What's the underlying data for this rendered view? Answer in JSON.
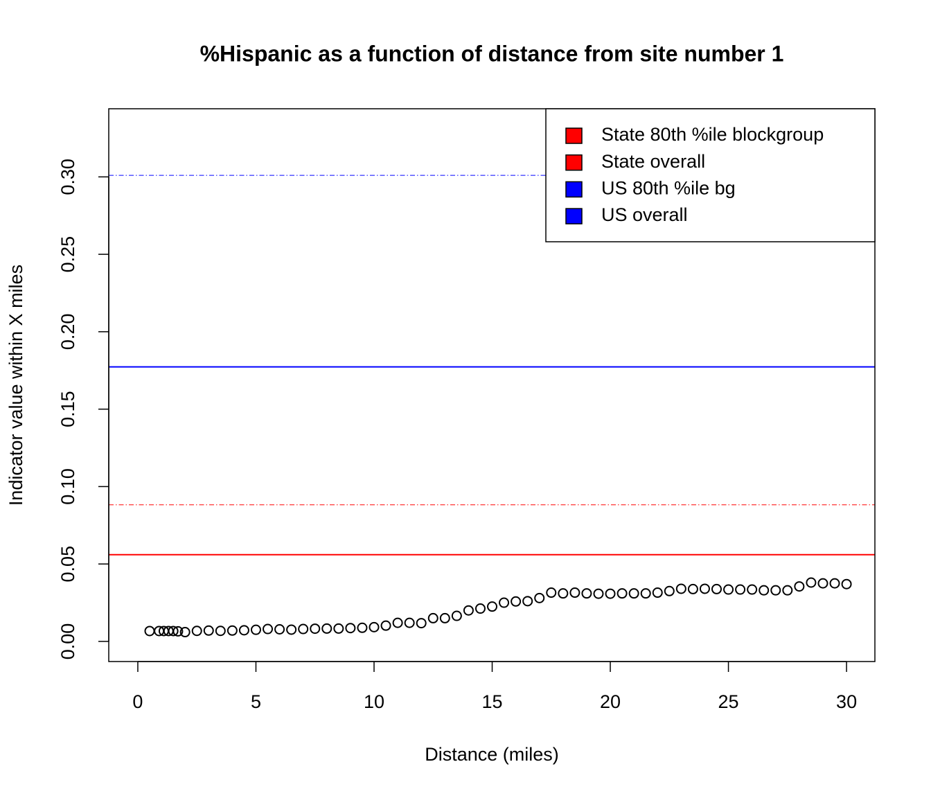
{
  "chart_data": {
    "type": "scatter",
    "title": "%Hispanic as a function of distance from site number 1",
    "x_label": "Distance (miles)",
    "y_label": "Indicator value within X miles",
    "xlim": [
      -1.23,
      31.2
    ],
    "ylim": [
      -0.013,
      0.344
    ],
    "xticks": [
      0,
      5,
      10,
      15,
      20,
      25,
      30
    ],
    "yticks": [
      {
        "value": 0,
        "label": "0.00"
      },
      {
        "value": 0.05,
        "label": "0.05"
      },
      {
        "value": 0.1,
        "label": "0.10"
      },
      {
        "value": 0.15,
        "label": "0.15"
      },
      {
        "value": 0.2,
        "label": "0.20"
      },
      {
        "value": 0.25,
        "label": "0.25"
      },
      {
        "value": 0.3,
        "label": "0.30"
      }
    ],
    "series": [
      {
        "color": "#000000",
        "x": [
          0.5,
          0.9,
          1.1,
          1.3,
          1.5,
          1.7,
          2.0,
          2.5,
          3.0,
          3.5,
          4.0,
          4.5,
          5.0,
          5.5,
          6.0,
          6.5,
          7.0,
          7.5,
          8.0,
          8.5,
          9.0,
          9.5,
          10.0,
          10.5,
          11.0,
          11.5,
          12.0,
          12.5,
          13.0,
          13.5,
          14.0,
          14.5,
          15.0,
          15.5,
          16.0,
          16.5,
          17.0,
          17.5,
          18.0,
          18.5,
          19.0,
          19.5,
          20.0,
          20.5,
          21.0,
          21.5,
          22.0,
          22.5,
          23.0,
          23.5,
          24.0,
          24.5,
          25.0,
          25.5,
          26.0,
          26.5,
          27.0,
          27.5,
          28.0,
          28.5,
          29.0,
          29.5,
          30.0
        ],
        "values": [
          0.0067,
          0.0067,
          0.0067,
          0.0067,
          0.0067,
          0.0065,
          0.006,
          0.0068,
          0.007,
          0.0068,
          0.007,
          0.0072,
          0.0075,
          0.008,
          0.0078,
          0.0076,
          0.008,
          0.0082,
          0.0083,
          0.0083,
          0.0086,
          0.0088,
          0.0092,
          0.0102,
          0.012,
          0.012,
          0.0118,
          0.015,
          0.015,
          0.0165,
          0.02,
          0.0212,
          0.0225,
          0.025,
          0.0258,
          0.026,
          0.028,
          0.0315,
          0.031,
          0.0315,
          0.031,
          0.0308,
          0.0308,
          0.031,
          0.031,
          0.031,
          0.0315,
          0.0325,
          0.034,
          0.0338,
          0.034,
          0.0338,
          0.0335,
          0.0335,
          0.0335,
          0.033,
          0.033,
          0.033,
          0.0355,
          0.038,
          0.0375,
          0.0375,
          0.037
        ]
      }
    ],
    "reference_lines": [
      {
        "name": "State 80th %ile blockgroup",
        "color": "#ff0000",
        "value": 0.0882,
        "style": "dotdash"
      },
      {
        "name": "State overall",
        "color": "#ff0000",
        "value": 0.056,
        "style": "solid"
      },
      {
        "name": "US 80th %ile bg",
        "color": "#0000ff",
        "value": 0.301,
        "style": "dotdash"
      },
      {
        "name": "US overall",
        "color": "#0000ff",
        "value": 0.1773,
        "style": "solid"
      }
    ],
    "legend": "topright"
  }
}
